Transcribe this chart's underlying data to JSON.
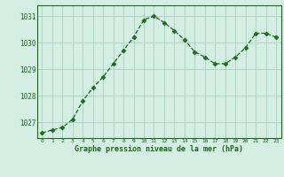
{
  "x": [
    0,
    1,
    2,
    3,
    4,
    5,
    6,
    7,
    8,
    9,
    10,
    11,
    12,
    13,
    14,
    15,
    16,
    17,
    18,
    19,
    20,
    21,
    22,
    23
  ],
  "y": [
    1026.6,
    1026.7,
    1026.8,
    1027.1,
    1027.8,
    1028.3,
    1028.7,
    1029.2,
    1029.7,
    1030.2,
    1030.85,
    1031.0,
    1030.75,
    1030.45,
    1030.1,
    1029.65,
    1029.45,
    1029.2,
    1029.2,
    1029.45,
    1029.8,
    1030.35,
    1030.35,
    1030.2
  ],
  "line_color": "#1a6b1a",
  "marker_color": "#1a6b1a",
  "bg_color": "#d4eee4",
  "grid_color": "#aacfbf",
  "axis_label_color": "#1a6b1a",
  "tick_label_color": "#1a6b1a",
  "ylabel_ticks": [
    1027,
    1028,
    1029,
    1030,
    1031
  ],
  "xlabel": "Graphe pression niveau de la mer (hPa)",
  "ylim": [
    1026.4,
    1031.4
  ],
  "xlim": [
    -0.5,
    23.5
  ]
}
